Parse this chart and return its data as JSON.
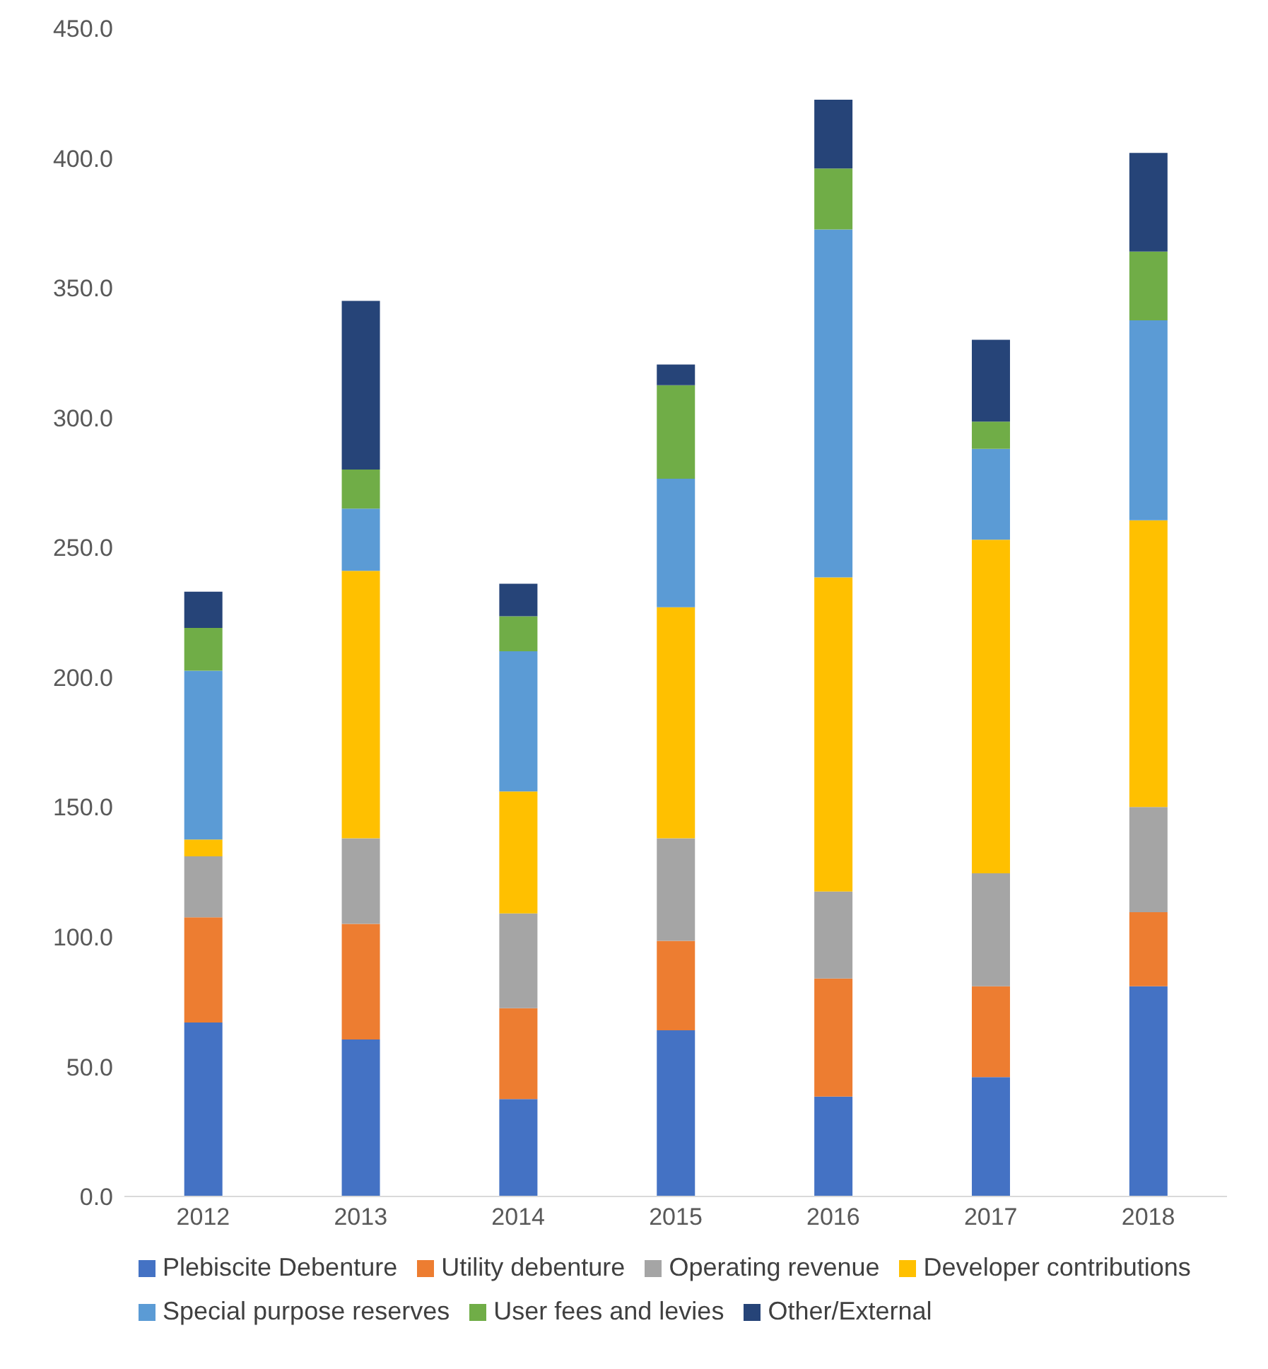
{
  "chart_data": {
    "type": "bar",
    "stacked": true,
    "categories": [
      "2012",
      "2013",
      "2014",
      "2015",
      "2016",
      "2017",
      "2018"
    ],
    "series": [
      {
        "name": "Plebiscite Debenture",
        "color": "#4472c4",
        "values": [
          67,
          60.5,
          37.5,
          64,
          38.5,
          46,
          81
        ]
      },
      {
        "name": "Utility debenture",
        "color": "#ed7d31",
        "values": [
          40.5,
          44.5,
          35,
          34.5,
          45.5,
          35,
          28.5
        ]
      },
      {
        "name": "Operating revenue",
        "color": "#a5a5a5",
        "values": [
          23.5,
          33,
          36.5,
          39.5,
          33.5,
          43.5,
          40.5
        ]
      },
      {
        "name": "Developer contributions",
        "color": "#ffc000",
        "values": [
          6.5,
          103,
          47,
          89,
          121,
          128.5,
          110.5
        ]
      },
      {
        "name": "Special purpose reserves",
        "color": "#5b9bd5",
        "values": [
          65,
          24,
          54,
          49.5,
          134,
          35,
          77
        ]
      },
      {
        "name": "User fees and levies",
        "color": "#70ad47",
        "values": [
          16.5,
          15,
          13.5,
          36,
          23.5,
          10.5,
          26.5
        ]
      },
      {
        "name": "Other/External",
        "color": "#264478",
        "values": [
          14,
          65,
          12.5,
          8,
          26.5,
          31.5,
          38
        ]
      }
    ],
    "ylim": [
      0,
      450
    ],
    "yticks": [
      {
        "value": 0,
        "label": "0.0"
      },
      {
        "value": 50,
        "label": "50.0"
      },
      {
        "value": 100,
        "label": "100.0"
      },
      {
        "value": 150,
        "label": "150.0"
      },
      {
        "value": 200,
        "label": "200.0"
      },
      {
        "value": 250,
        "label": "250.0"
      },
      {
        "value": 300,
        "label": "300.0"
      },
      {
        "value": 350,
        "label": "350.0"
      },
      {
        "value": 400,
        "label": "400.0"
      },
      {
        "value": 450,
        "label": "450.0"
      }
    ],
    "legend": "bottom"
  }
}
